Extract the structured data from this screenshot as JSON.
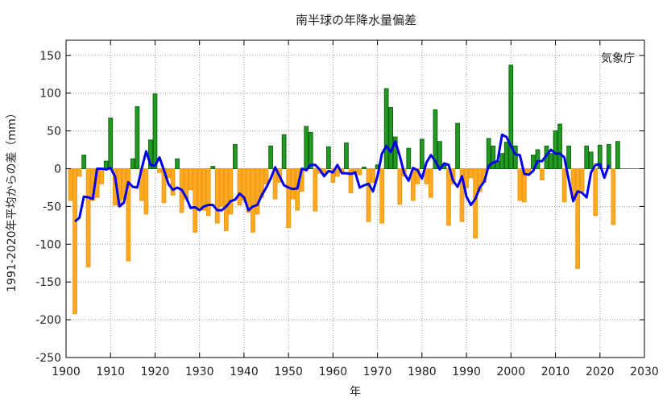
{
  "chart_data": {
    "type": "bar",
    "title": "南半球の年降水量偏差",
    "xlabel": "年",
    "ylabel": "1991-2020年平均からの差（mm）",
    "source": "気象庁",
    "xlim": [
      1900,
      2030
    ],
    "ylim": [
      -250,
      170
    ],
    "xticks": [
      1900,
      1910,
      1920,
      1930,
      1940,
      1950,
      1960,
      1970,
      1980,
      1990,
      2000,
      2010,
      2020,
      2030
    ],
    "yticks": [
      -250,
      -200,
      -150,
      -100,
      -50,
      0,
      50,
      100,
      150
    ],
    "grid": true,
    "colors": {
      "positive": "#229922",
      "negative": "#ffaa22",
      "line": "#0000ee"
    },
    "series": [
      {
        "type": "bar",
        "x": [
          1901,
          1902,
          1903,
          1904,
          1905,
          1906,
          1907,
          1908,
          1909,
          1910,
          1911,
          1912,
          1913,
          1914,
          1915,
          1916,
          1917,
          1918,
          1919,
          1920,
          1921,
          1922,
          1923,
          1924,
          1925,
          1926,
          1927,
          1928,
          1929,
          1930,
          1931,
          1932,
          1933,
          1934,
          1935,
          1936,
          1937,
          1938,
          1939,
          1940,
          1941,
          1942,
          1943,
          1944,
          1945,
          1946,
          1947,
          1948,
          1949,
          1950,
          1951,
          1952,
          1953,
          1954,
          1955,
          1956,
          1957,
          1958,
          1959,
          1960,
          1961,
          1962,
          1963,
          1964,
          1965,
          1966,
          1967,
          1968,
          1969,
          1970,
          1971,
          1972,
          1973,
          1974,
          1975,
          1976,
          1977,
          1978,
          1979,
          1980,
          1981,
          1982,
          1983,
          1984,
          1985,
          1986,
          1987,
          1988,
          1989,
          1990,
          1991,
          1992,
          1993,
          1994,
          1995,
          1996,
          1997,
          1998,
          1999,
          2000,
          2001,
          2002,
          2003,
          2004,
          2005,
          2006,
          2007,
          2008,
          2009,
          2010,
          2011,
          2012,
          2013,
          2014,
          2015,
          2016,
          2017,
          2018,
          2019,
          2020,
          2021,
          2022,
          2023,
          2024
        ],
        "values": [
          -42,
          -192,
          -10,
          18,
          -130,
          -42,
          -38,
          -20,
          10,
          67,
          -48,
          -50,
          -40,
          -122,
          13,
          82,
          -42,
          -60,
          38,
          99,
          -5,
          -45,
          -12,
          -35,
          13,
          -58,
          -40,
          -28,
          -84,
          -52,
          -55,
          -62,
          3,
          -72,
          -50,
          -82,
          -60,
          32,
          -48,
          -42,
          -58,
          -84,
          -60,
          -38,
          -20,
          30,
          -40,
          -18,
          45,
          -78,
          -40,
          -55,
          -30,
          56,
          48,
          -56,
          -6,
          -8,
          29,
          -18,
          -10,
          -5,
          34,
          -32,
          -5,
          -8,
          2,
          -70,
          -18,
          5,
          -72,
          106,
          81,
          42,
          -47,
          -10,
          27,
          -42,
          -20,
          39,
          -20,
          -38,
          78,
          36,
          5,
          -75,
          -20,
          60,
          -70,
          -25,
          -12,
          -92,
          -30,
          -18,
          40,
          30,
          10,
          20,
          35,
          137,
          30,
          -42,
          -44,
          -5,
          18,
          25,
          -15,
          30,
          20,
          50,
          59,
          -44,
          30,
          -40,
          -132,
          -30,
          30,
          22,
          -62,
          31,
          0,
          32,
          -74,
          36
        ]
      },
      {
        "type": "line",
        "name": "",
        "x": [
          1902,
          1903,
          1904,
          1905,
          1906,
          1907,
          1908,
          1909,
          1910,
          1911,
          1912,
          1913,
          1914,
          1915,
          1916,
          1917,
          1918,
          1919,
          1920,
          1921,
          1922,
          1923,
          1924,
          1925,
          1926,
          1927,
          1928,
          1929,
          1930,
          1931,
          1932,
          1933,
          1934,
          1935,
          1936,
          1937,
          1938,
          1939,
          1940,
          1941,
          1942,
          1943,
          1944,
          1945,
          1946,
          1947,
          1948,
          1949,
          1950,
          1951,
          1952,
          1953,
          1954,
          1955,
          1956,
          1957,
          1958,
          1959,
          1960,
          1961,
          1962,
          1963,
          1964,
          1965,
          1966,
          1967,
          1968,
          1969,
          1970,
          1971,
          1972,
          1973,
          1974,
          1975,
          1976,
          1977,
          1978,
          1979,
          1980,
          1981,
          1982,
          1983,
          1984,
          1985,
          1986,
          1987,
          1988,
          1989,
          1990,
          1991,
          1992,
          1993,
          1994,
          1995,
          1996,
          1997,
          1998,
          1999,
          2000,
          2001,
          2002,
          2003,
          2004,
          2005,
          2006,
          2007,
          2008,
          2009,
          2010,
          2011,
          2012,
          2013,
          2014,
          2015,
          2016,
          2017,
          2018,
          2019,
          2020,
          2021,
          2022
        ],
        "values": [
          -70,
          -65,
          -37,
          -38,
          -40,
          0,
          0,
          -1,
          1,
          -10,
          -50,
          -45,
          -18,
          -24,
          -25,
          0,
          23,
          5,
          4,
          15,
          -2,
          -20,
          -28,
          -25,
          -28,
          -38,
          -52,
          -51,
          -55,
          -50,
          -48,
          -48,
          -55,
          -55,
          -50,
          -43,
          -41,
          -33,
          -38,
          -55,
          -50,
          -48,
          -35,
          -25,
          -13,
          2,
          -10,
          -22,
          -25,
          -27,
          -26,
          0,
          -2,
          5,
          5,
          -1,
          -10,
          -3,
          -5,
          5,
          -6,
          -6,
          -7,
          -5,
          -25,
          -22,
          -20,
          -30,
          -10,
          20,
          30,
          22,
          36,
          17,
          -6,
          -16,
          1,
          -2,
          -13,
          8,
          18,
          10,
          -1,
          7,
          5,
          -16,
          -24,
          -10,
          -37,
          -48,
          -40,
          -25,
          -17,
          4,
          8,
          10,
          45,
          42,
          30,
          19,
          18,
          -7,
          -8,
          -3,
          10,
          10,
          18,
          25,
          20,
          20,
          15,
          -15,
          -43,
          -30,
          -32,
          -38,
          -5,
          5,
          6,
          -12,
          5
        ]
      }
    ]
  }
}
